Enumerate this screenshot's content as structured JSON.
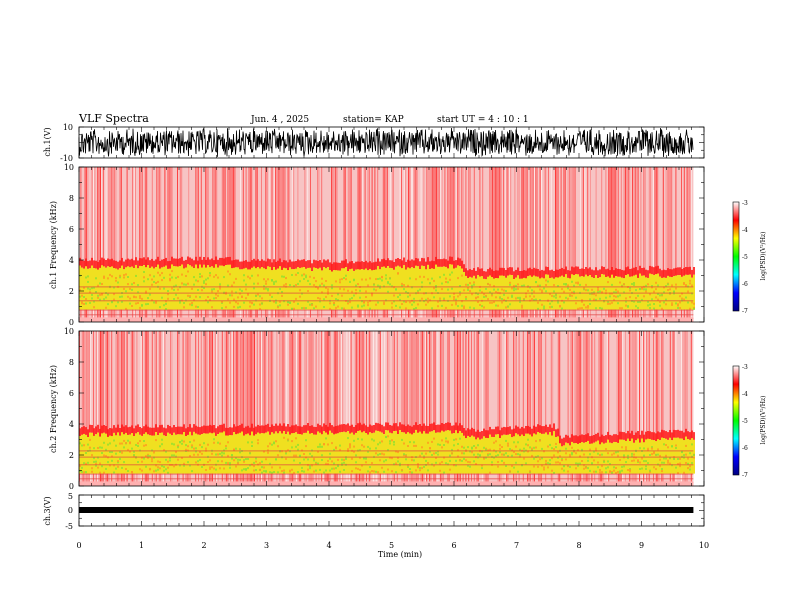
{
  "header": {
    "title": "VLF Spectra",
    "date": "Jun. 4 , 2025",
    "station": "station= KAP",
    "start": "start UT = 4 : 10 : 1"
  },
  "chart_data": [
    {
      "type": "line",
      "name": "waveform-ch1",
      "ylabel": "ch.1(V)",
      "ylim": [
        -10,
        10
      ],
      "y_ticks": [
        "10",
        "-10"
      ],
      "xlim": [
        0,
        10
      ],
      "data_end_min": 9.83
    },
    {
      "type": "heatmap",
      "name": "spectrogram-ch1",
      "ylabel": "ch.1 Frequency (kHz)",
      "ylim": [
        0,
        10
      ],
      "y_ticks": [
        "0",
        "2",
        "4",
        "6",
        "8",
        "10"
      ],
      "xlim": [
        0,
        10
      ],
      "data_end_min": 9.83,
      "band_top_khz": [
        {
          "t": 0,
          "khz": 3.5
        },
        {
          "t": 2,
          "khz": 3.6
        },
        {
          "t": 4,
          "khz": 3.4
        },
        {
          "t": 6.1,
          "khz": 3.6
        },
        {
          "t": 6.2,
          "khz": 2.9
        },
        {
          "t": 9.8,
          "khz": 3.0
        }
      ],
      "colorbar": {
        "label": "log(PSD)(V²/Hz)",
        "range": [
          -7,
          -3
        ],
        "ticks": [
          "-3",
          "-4",
          "-5",
          "-6",
          "-7"
        ],
        "colors": [
          "#000080",
          "#0000ff",
          "#00ffff",
          "#00ff00",
          "#ffff00",
          "#ff0000",
          "#ffffff"
        ]
      }
    },
    {
      "type": "heatmap",
      "name": "spectrogram-ch2",
      "ylabel": "ch.2 Frequency (kHz)",
      "ylim": [
        0,
        10
      ],
      "y_ticks": [
        "0",
        "2",
        "4",
        "6",
        "8",
        "10"
      ],
      "xlim": [
        0,
        10
      ],
      "data_end_min": 9.83,
      "band_top_khz": [
        {
          "t": 0,
          "khz": 3.3
        },
        {
          "t": 3,
          "khz": 3.4
        },
        {
          "t": 6.1,
          "khz": 3.5
        },
        {
          "t": 6.2,
          "khz": 3.1
        },
        {
          "t": 7.6,
          "khz": 3.4
        },
        {
          "t": 7.7,
          "khz": 2.7
        },
        {
          "t": 9.8,
          "khz": 3.1
        }
      ],
      "colorbar": {
        "label": "log(PSD)(V²/Hz)",
        "range": [
          -7,
          -3
        ],
        "ticks": [
          "-3",
          "-4",
          "-5",
          "-6",
          "-7"
        ],
        "colors": [
          "#000080",
          "#0000ff",
          "#00ffff",
          "#00ff00",
          "#ffff00",
          "#ff0000",
          "#ffffff"
        ]
      }
    },
    {
      "type": "line",
      "name": "waveform-ch3",
      "ylabel": "ch.3(V)",
      "ylim": [
        -5,
        5
      ],
      "y_ticks": [
        "5",
        "0",
        "-5"
      ],
      "xlim": [
        0,
        10
      ],
      "data_end_min": 9.83
    }
  ],
  "x_axis": {
    "label": "Time (min)",
    "ticks": [
      "0",
      "1",
      "2",
      "3",
      "4",
      "5",
      "6",
      "7",
      "8",
      "9",
      "10"
    ]
  }
}
